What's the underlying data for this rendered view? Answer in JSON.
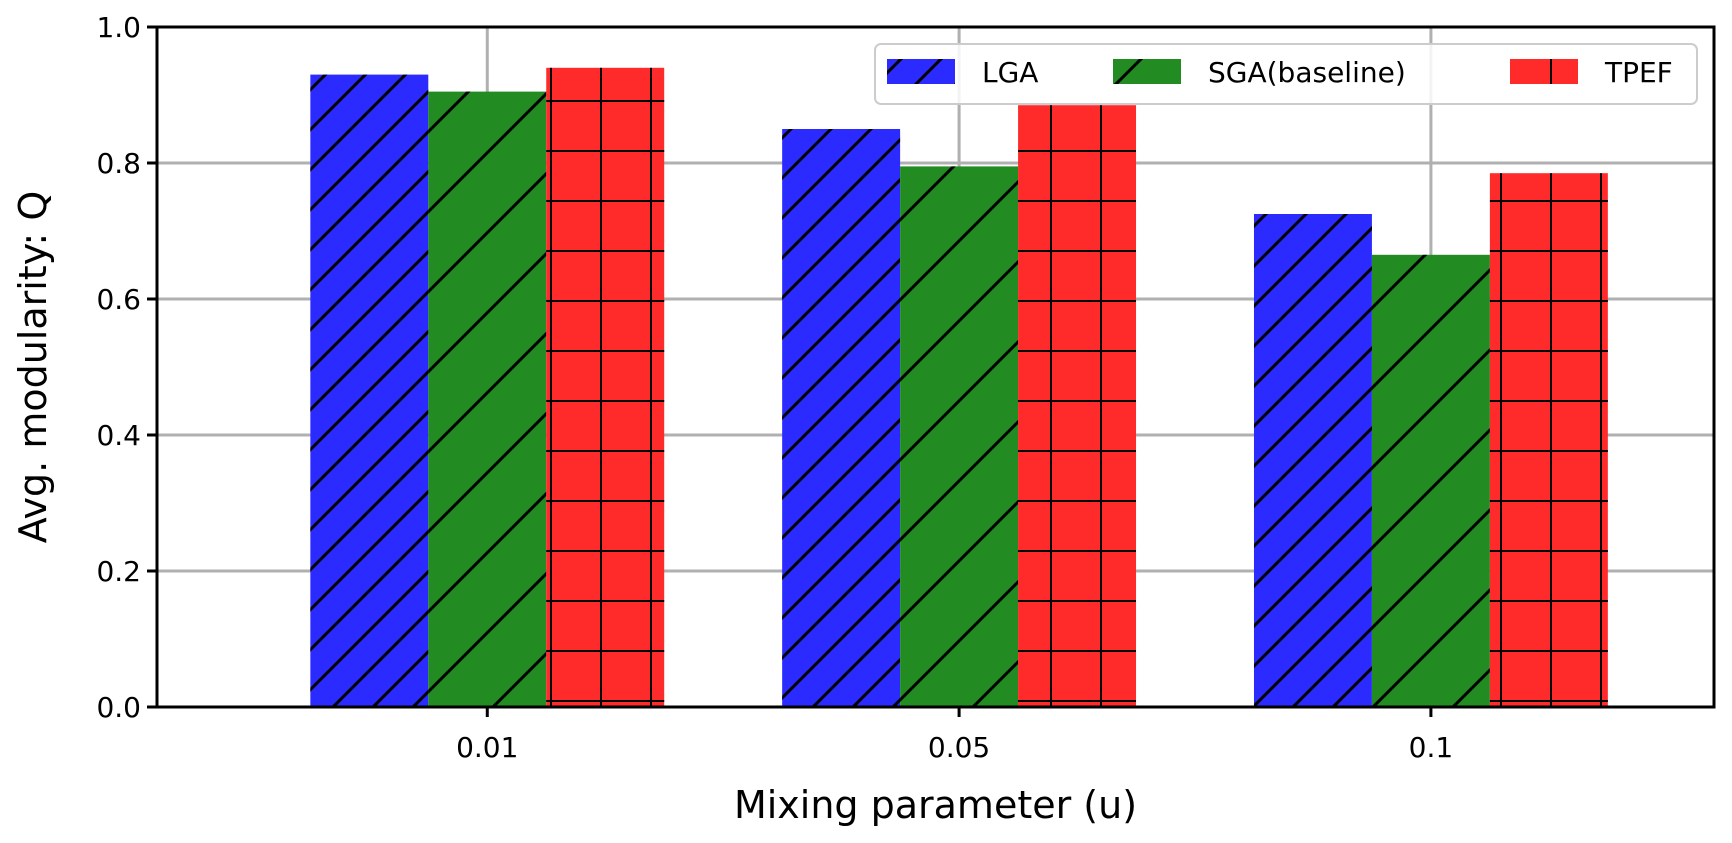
{
  "chart_data": {
    "type": "bar",
    "title": "",
    "xlabel": "Mixing parameter (u)",
    "ylabel": "Avg. modularity: Q",
    "categories": [
      "0.01",
      "0.05",
      "0.1"
    ],
    "ylim": [
      0.0,
      1.0
    ],
    "yticks": [
      "0.0",
      "0.2",
      "0.4",
      "0.6",
      "0.8",
      "1.0"
    ],
    "grid": true,
    "legend_position": "top-right",
    "series": [
      {
        "name": "LGA",
        "values": [
          0.93,
          0.85,
          0.725
        ],
        "color": "#2b2bff",
        "hatch": "diagonal"
      },
      {
        "name": "SGA(baseline)",
        "values": [
          0.905,
          0.795,
          0.665
        ],
        "color": "#228b22",
        "hatch": "diagonal-sparse"
      },
      {
        "name": "TPEF",
        "values": [
          0.94,
          0.885,
          0.785
        ],
        "color": "#ff2a2a",
        "hatch": "grid"
      }
    ]
  }
}
